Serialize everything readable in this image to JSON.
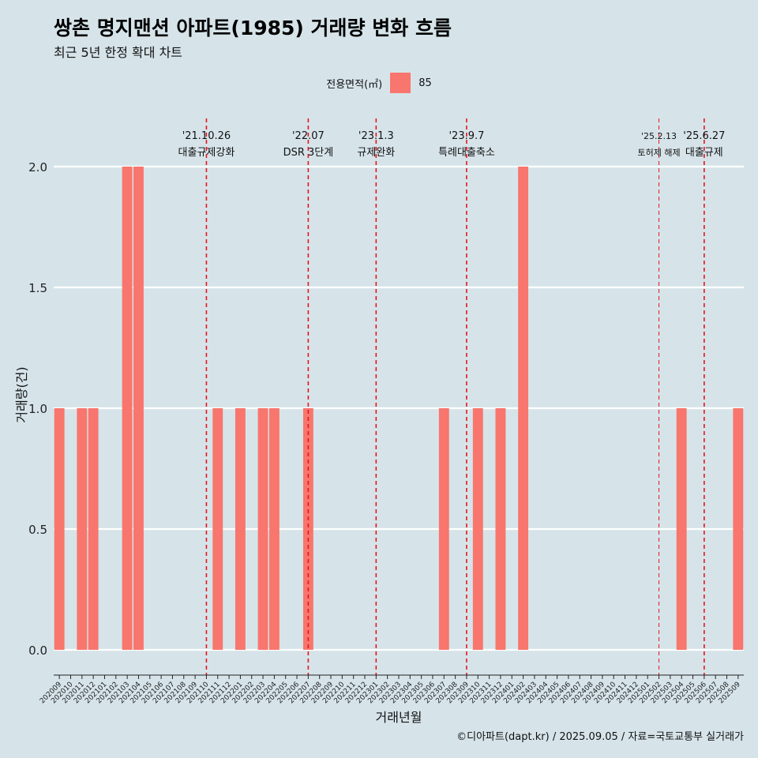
{
  "header": {
    "title": "쌍촌 명지맨션 아파트(1985) 거래량 변화 흐름",
    "subtitle": "최근 5년 한정 확대 차트"
  },
  "legend": {
    "title": "전용면적(㎡)",
    "items": [
      {
        "label": "85",
        "color": "#f8766d"
      }
    ]
  },
  "caption": "©디아파트(dapt.kr) / 2025.09.05 / 자료=국토교통부 실거래가",
  "chart_data": {
    "type": "bar",
    "xlabel": "거래년월",
    "ylabel": "거래량(건)",
    "ylim": [
      0,
      2
    ],
    "yticks": [
      "0.0",
      "0.5",
      "1.0",
      "1.5",
      "2.0"
    ],
    "ytick_values": [
      0,
      0.5,
      1.0,
      1.5,
      2.0
    ],
    "grid": true,
    "legend_position": "top",
    "categories": [
      "202009",
      "202010",
      "202011",
      "202012",
      "202101",
      "202102",
      "202103",
      "202104",
      "202105",
      "202106",
      "202107",
      "202108",
      "202109",
      "202110",
      "202111",
      "202112",
      "202201",
      "202202",
      "202203",
      "202204",
      "202205",
      "202206",
      "202207",
      "202208",
      "202209",
      "202210",
      "202211",
      "202212",
      "202301",
      "202302",
      "202303",
      "202304",
      "202305",
      "202306",
      "202307",
      "202308",
      "202309",
      "202310",
      "202311",
      "202312",
      "202401",
      "202402",
      "202403",
      "202404",
      "202405",
      "202406",
      "202407",
      "202408",
      "202409",
      "202410",
      "202411",
      "202412",
      "202501",
      "202502",
      "202503",
      "202504",
      "202505",
      "202506",
      "202507",
      "202508",
      "202509"
    ],
    "series": [
      {
        "name": "85",
        "color": "#f8766d",
        "values": [
          1,
          0,
          1,
          1,
          0,
          0,
          2,
          2,
          0,
          0,
          0,
          0,
          0,
          0,
          1,
          0,
          1,
          0,
          1,
          1,
          0,
          0,
          1,
          0,
          0,
          0,
          0,
          0,
          0,
          0,
          0,
          0,
          0,
          0,
          1,
          0,
          0,
          1,
          0,
          1,
          0,
          2,
          0,
          0,
          0,
          0,
          0,
          0,
          0,
          0,
          0,
          0,
          0,
          0,
          0,
          1,
          0,
          0,
          0,
          0,
          1
        ]
      }
    ],
    "annotations": [
      {
        "x": "202110",
        "date": "'21.10.26",
        "label": "대출규제강화",
        "small": false
      },
      {
        "x": "202207",
        "date": "'22.07",
        "label": "DSR 3단계",
        "small": false
      },
      {
        "x": "202301",
        "date": "'23.1.3",
        "label": "규제완화",
        "small": false
      },
      {
        "x": "202309",
        "date": "'23.9.7",
        "label": "특례대출축소",
        "small": false
      },
      {
        "x": "202502",
        "date": "'25.2.13",
        "label": "토허제 해제",
        "small": true
      },
      {
        "x": "202506",
        "date": "'25.6.27",
        "label": "대출규제",
        "small": false
      }
    ]
  }
}
